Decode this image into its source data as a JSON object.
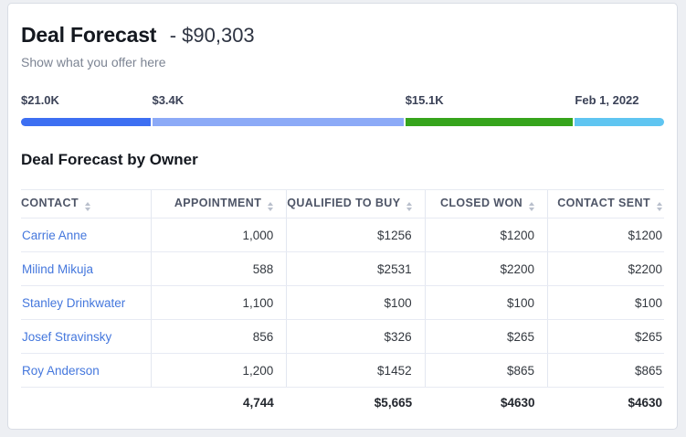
{
  "header": {
    "title": "Deal Forecast",
    "amount": "- $90,303",
    "subtitle": "Show what you offer here"
  },
  "progress": {
    "segments": [
      {
        "label": "$21.0K",
        "color": "#3d6ff2",
        "width_pct": 20.1
      },
      {
        "label": "$3.4K",
        "color": "#8caaf7",
        "width_pct": 39.1
      },
      {
        "label": "$15.1K",
        "color": "#36a41c",
        "width_pct": 26.1
      },
      {
        "label": "Feb 1, 2022",
        "color": "#5fc5f1",
        "width_pct": 13.9
      }
    ]
  },
  "section": {
    "title": "Deal Forecast by Owner"
  },
  "table": {
    "columns": [
      {
        "label": "CONTACT",
        "width": "20.2%"
      },
      {
        "label": "APPOINTMENT",
        "width": "21.1%"
      },
      {
        "label": "QUALIFIED TO BUY",
        "width": "21.5%"
      },
      {
        "label": "CLOSED WON",
        "width": "19.1%"
      },
      {
        "label": "CONTACT SENT",
        "width": "18.1%"
      }
    ],
    "rows": [
      {
        "contact": "Carrie Anne",
        "values": [
          "1,000",
          "$1256",
          "$1200",
          "$1200"
        ]
      },
      {
        "contact": "Milind Mikuja",
        "values": [
          "588",
          "$2531",
          "$2200",
          "$2200"
        ]
      },
      {
        "contact": "Stanley Drinkwater",
        "values": [
          "1,100",
          "$100",
          "$100",
          "$100"
        ]
      },
      {
        "contact": "Josef Stravinsky",
        "values": [
          "856",
          "$326",
          "$265",
          "$265"
        ]
      },
      {
        "contact": "Roy Anderson",
        "values": [
          "1,200",
          "$1452",
          "$865",
          "$865"
        ]
      }
    ],
    "totals": [
      "",
      "4,744",
      "$5,665",
      "$4630",
      "$4630"
    ]
  },
  "colors": {
    "link": "#4477dd",
    "segment_blue": "#3d6ff2",
    "segment_light_blue": "#8caaf7",
    "segment_green": "#36a41c",
    "segment_cyan": "#5fc5f1",
    "card_background": "#ffffff",
    "page_background": "#edeff3"
  }
}
